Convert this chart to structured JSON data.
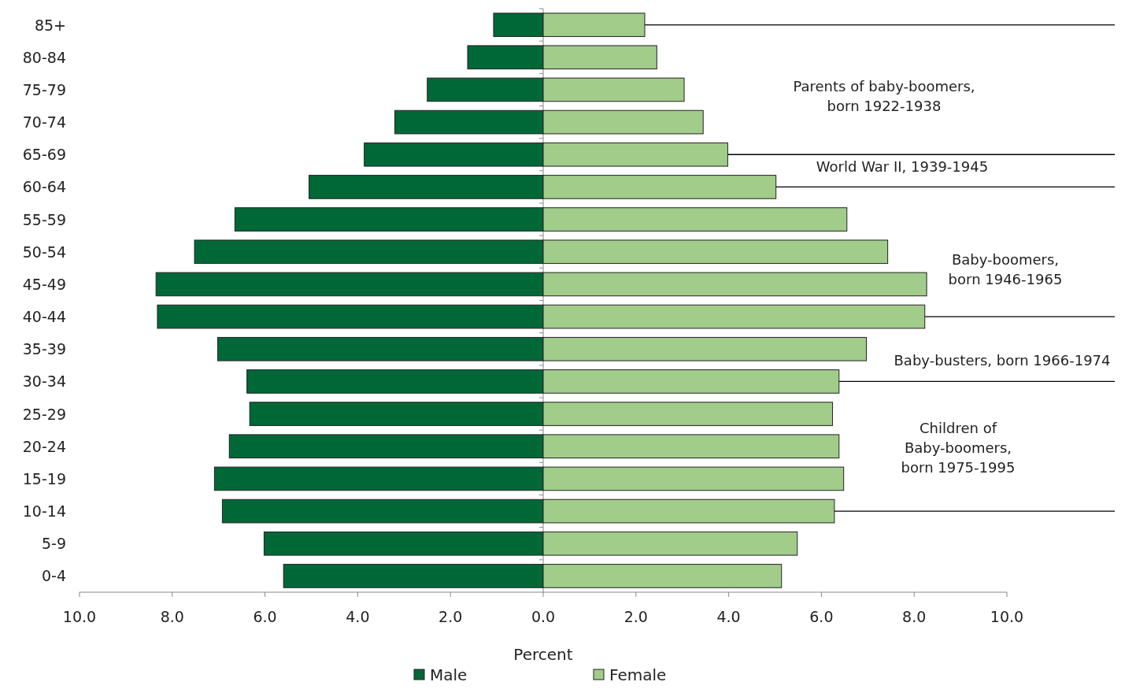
{
  "chart_data": {
    "type": "bar",
    "orientation": "horizontal",
    "stacked": true,
    "xlabel": "Percent",
    "categories": [
      "85+",
      "80-84",
      "75-79",
      "70-74",
      "65-69",
      "60-64",
      "55-59",
      "50-54",
      "45-49",
      "40-44",
      "35-39",
      "30-34",
      "25-29",
      "20-24",
      "15-19",
      "10-14",
      "5-9",
      "0-4"
    ],
    "series": [
      {
        "name": "Male",
        "color": "#006837",
        "values": [
          -1.07,
          -1.63,
          -2.5,
          -3.2,
          -3.86,
          -5.05,
          -6.65,
          -7.52,
          -8.35,
          -8.32,
          -7.02,
          -6.39,
          -6.33,
          -6.77,
          -7.09,
          -6.92,
          -6.02,
          -5.6
        ]
      },
      {
        "name": "Female",
        "color": "#a1cc8a",
        "values": [
          2.19,
          2.45,
          3.04,
          3.45,
          3.98,
          5.02,
          6.55,
          7.43,
          8.27,
          8.23,
          6.97,
          6.38,
          6.24,
          6.38,
          6.48,
          6.28,
          5.48,
          5.14
        ]
      }
    ],
    "xlim": [
      -10,
      10
    ],
    "xticks": [
      {
        "value": -10,
        "label": "10.0"
      },
      {
        "value": -8,
        "label": "8.0"
      },
      {
        "value": -6,
        "label": "6.0"
      },
      {
        "value": -4,
        "label": "4.0"
      },
      {
        "value": -2,
        "label": "2.0"
      },
      {
        "value": 0,
        "label": "0.0"
      },
      {
        "value": 2,
        "label": "2.0"
      },
      {
        "value": 4,
        "label": "4.0"
      },
      {
        "value": 6,
        "label": "6.0"
      },
      {
        "value": 8,
        "label": "8.0"
      },
      {
        "value": 10,
        "label": "10.0"
      }
    ],
    "ref_lines": [
      {
        "axis": "x",
        "value": 0,
        "color": "#888888"
      },
      {
        "axis": "y",
        "value": "85+"
      },
      {
        "axis": "y",
        "value": "65-69"
      },
      {
        "axis": "y",
        "value": "60-64"
      },
      {
        "axis": "y",
        "value": "40-44"
      },
      {
        "axis": "y",
        "value": "30-34"
      },
      {
        "axis": "y",
        "value": "10-14"
      }
    ],
    "annotations": [
      "Parents of baby-boomers,\nborn 1922-1938",
      "World War II, 1939-1945",
      "Baby-boomers,\nborn 1946-1965",
      "Baby-busters, born 1966-1974",
      "Children of\nBaby-boomers,\nborn 1975-1995"
    ],
    "legend": "bottom",
    "grid": false
  }
}
